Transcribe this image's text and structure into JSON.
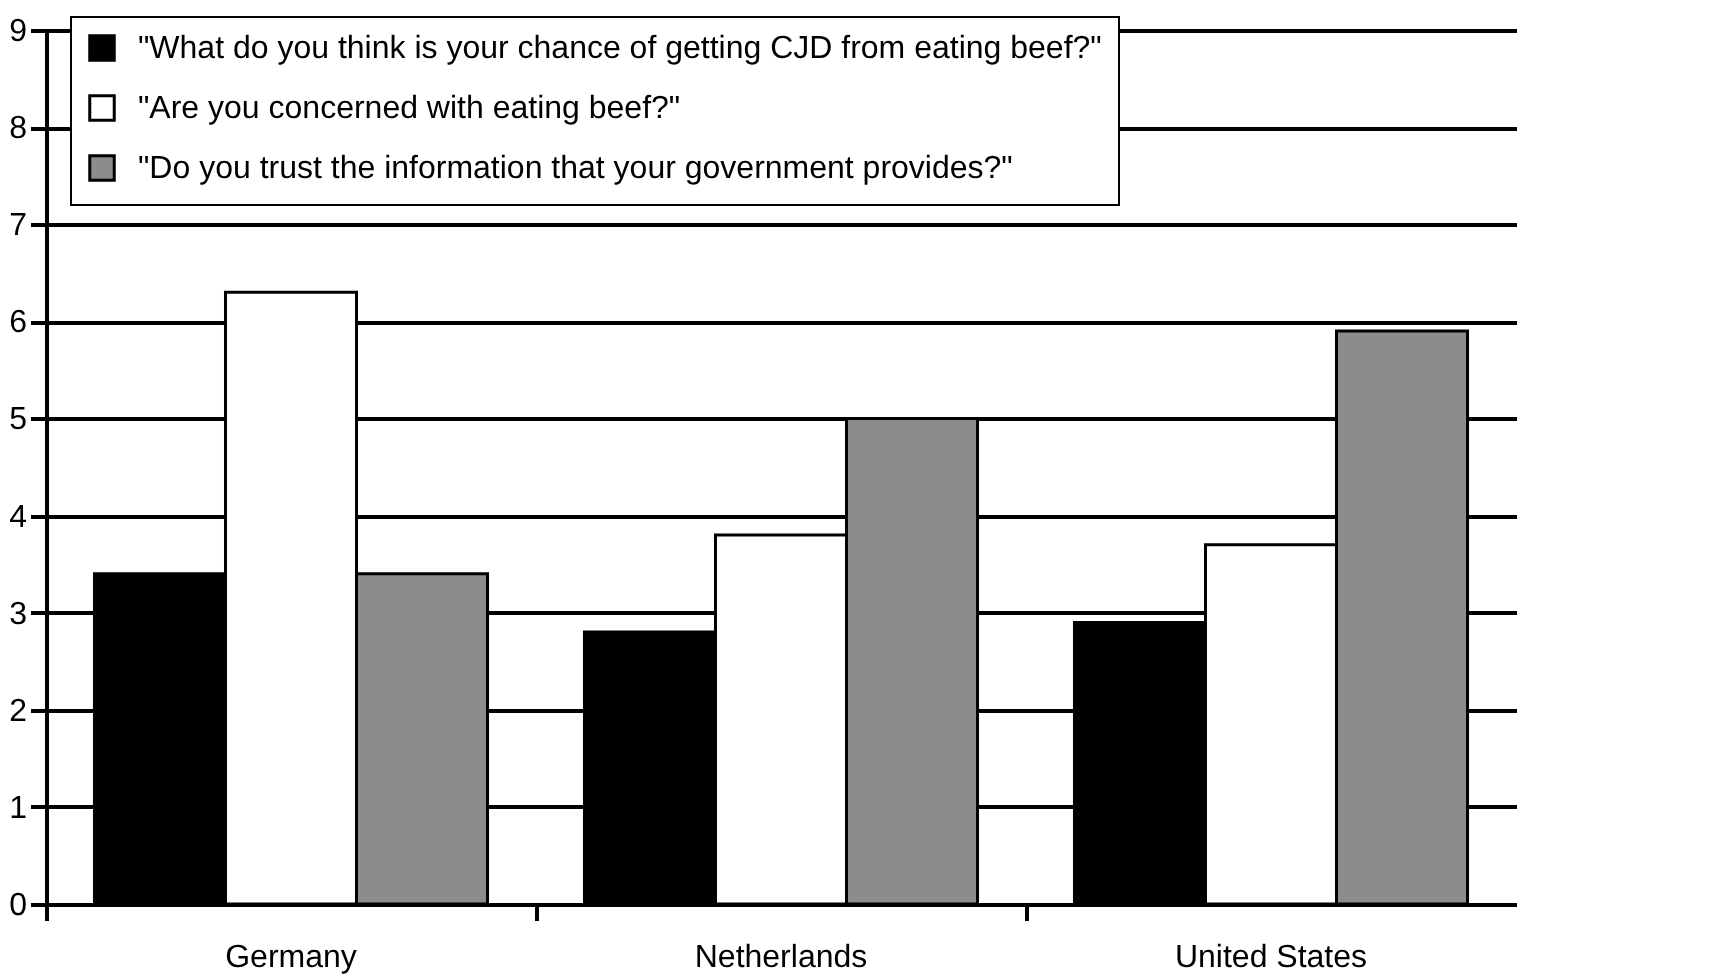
{
  "chart_data": {
    "type": "bar",
    "categories": [
      "Germany",
      "Netherlands",
      "United States"
    ],
    "series": [
      {
        "name": "\"What do you think is your chance of getting CJD from eating beef?\"",
        "color": "#000000",
        "values": [
          3.4,
          2.8,
          2.9
        ]
      },
      {
        "name": "\"Are you concerned with eating beef?\"",
        "color": "#ffffff",
        "values": [
          6.3,
          3.8,
          3.7
        ]
      },
      {
        "name": "\"Do you trust the information that your government provides?\"",
        "color": "#8c8c8c",
        "values": [
          3.4,
          5.0,
          5.9
        ]
      }
    ],
    "ylim": [
      0,
      9
    ],
    "yticks": [
      0,
      1,
      2,
      3,
      4,
      5,
      6,
      7,
      8,
      9
    ],
    "grid": "y",
    "legend": "top"
  }
}
